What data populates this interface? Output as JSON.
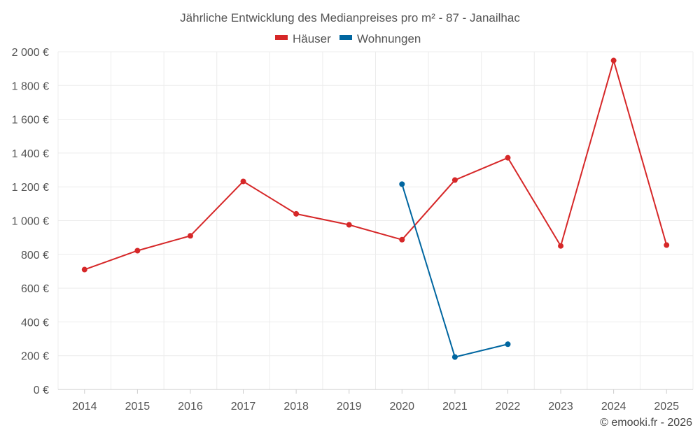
{
  "chart_data": {
    "type": "line",
    "title": "Jährliche Entwicklung des Medianpreises pro m² - 87 - Janailhac",
    "categories": [
      "2014",
      "2015",
      "2016",
      "2017",
      "2018",
      "2019",
      "2020",
      "2021",
      "2022",
      "2023",
      "2024",
      "2025"
    ],
    "ylim": [
      0,
      2000
    ],
    "yticks": [
      0,
      200,
      400,
      600,
      800,
      1000,
      1200,
      1400,
      1600,
      1800,
      2000
    ],
    "ytick_labels": [
      "0 €",
      "200 €",
      "400 €",
      "600 €",
      "800 €",
      "1 000 €",
      "1 200 €",
      "1 400 €",
      "1 600 €",
      "1 800 €",
      "2 000 €"
    ],
    "grid": true,
    "legend_position": "top-center",
    "series": [
      {
        "name": "Häuser",
        "color": "#d62728",
        "values": [
          710,
          822,
          910,
          1232,
          1040,
          975,
          887,
          1240,
          1372,
          850,
          1948,
          855
        ]
      },
      {
        "name": "Wohnungen",
        "color": "#0066a0",
        "values": [
          null,
          null,
          null,
          null,
          null,
          null,
          1216,
          192,
          268,
          null,
          null,
          null
        ]
      }
    ]
  },
  "credit": "© emooki.fr - 2026"
}
